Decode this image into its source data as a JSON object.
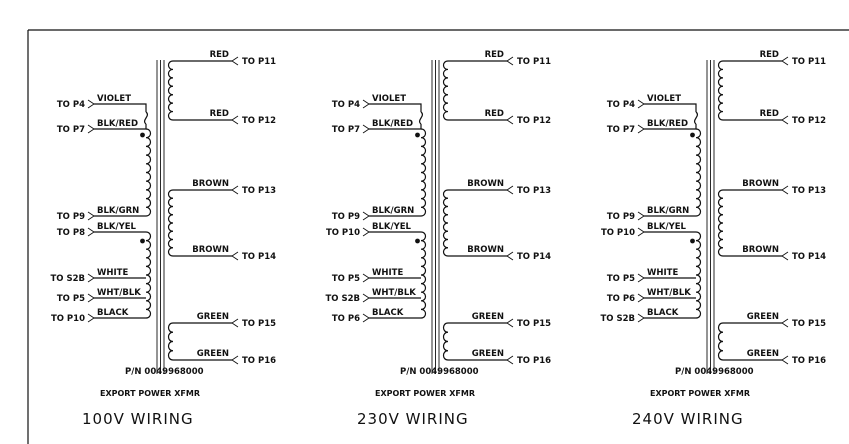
{
  "panels": [
    {
      "title": "100V  WIRING",
      "caption": "EXPORT POWER XFMR",
      "part_number": "P/N 0049968000",
      "primary": [
        {
          "wire": "VIOLET",
          "terminal": "TO P4"
        },
        {
          "wire": "BLK/RED",
          "terminal": "TO P7"
        },
        {
          "wire": "BLK/GRN",
          "terminal": "TO P9"
        },
        {
          "wire": "BLK/YEL",
          "terminal": "TO P8"
        },
        {
          "wire": "WHITE",
          "terminal": "TO S2B"
        },
        {
          "wire": "WHT/BLK",
          "terminal": "TO P5"
        },
        {
          "wire": "BLACK",
          "terminal": "TO P10"
        }
      ],
      "secondary": [
        {
          "wire": "RED",
          "terminal": "TO P11"
        },
        {
          "wire": "RED",
          "terminal": "TO P12"
        },
        {
          "wire": "BROWN",
          "terminal": "TO P13"
        },
        {
          "wire": "BROWN",
          "terminal": "TO P14"
        },
        {
          "wire": "GREEN",
          "terminal": "TO P15"
        },
        {
          "wire": "GREEN",
          "terminal": "TO P16"
        }
      ]
    },
    {
      "title": "230V  WIRING",
      "caption": "EXPORT POWER XFMR",
      "part_number": "P/N 0049968000",
      "primary": [
        {
          "wire": "VIOLET",
          "terminal": "TO P4"
        },
        {
          "wire": "BLK/RED",
          "terminal": "TO P7"
        },
        {
          "wire": "BLK/GRN",
          "terminal": "TO P9"
        },
        {
          "wire": "BLK/YEL",
          "terminal": "TO P10"
        },
        {
          "wire": "WHITE",
          "terminal": "TO P5"
        },
        {
          "wire": "WHT/BLK",
          "terminal": "TO S2B"
        },
        {
          "wire": "BLACK",
          "terminal": "TO P6"
        }
      ],
      "secondary": [
        {
          "wire": "RED",
          "terminal": "TO P11"
        },
        {
          "wire": "RED",
          "terminal": "TO P12"
        },
        {
          "wire": "BROWN",
          "terminal": "TO P13"
        },
        {
          "wire": "BROWN",
          "terminal": "TO P14"
        },
        {
          "wire": "GREEN",
          "terminal": "TO P15"
        },
        {
          "wire": "GREEN",
          "terminal": "TO P16"
        }
      ]
    },
    {
      "title": "240V  WIRING",
      "caption": "EXPORT POWER XFMR",
      "part_number": "P/N 0049968000",
      "primary": [
        {
          "wire": "VIOLET",
          "terminal": "TO P4"
        },
        {
          "wire": "BLK/RED",
          "terminal": "TO P7"
        },
        {
          "wire": "BLK/GRN",
          "terminal": "TO P9"
        },
        {
          "wire": "BLK/YEL",
          "terminal": "TO P10"
        },
        {
          "wire": "WHITE",
          "terminal": "TO P5"
        },
        {
          "wire": "WHT/BLK",
          "terminal": "TO P6"
        },
        {
          "wire": "BLACK",
          "terminal": "TO S2B"
        }
      ],
      "secondary": [
        {
          "wire": "RED",
          "terminal": "TO P11"
        },
        {
          "wire": "RED",
          "terminal": "TO P12"
        },
        {
          "wire": "BROWN",
          "terminal": "TO P13"
        },
        {
          "wire": "BROWN",
          "terminal": "TO P14"
        },
        {
          "wire": "GREEN",
          "terminal": "TO P15"
        },
        {
          "wire": "GREEN",
          "terminal": "TO P16"
        }
      ]
    }
  ]
}
